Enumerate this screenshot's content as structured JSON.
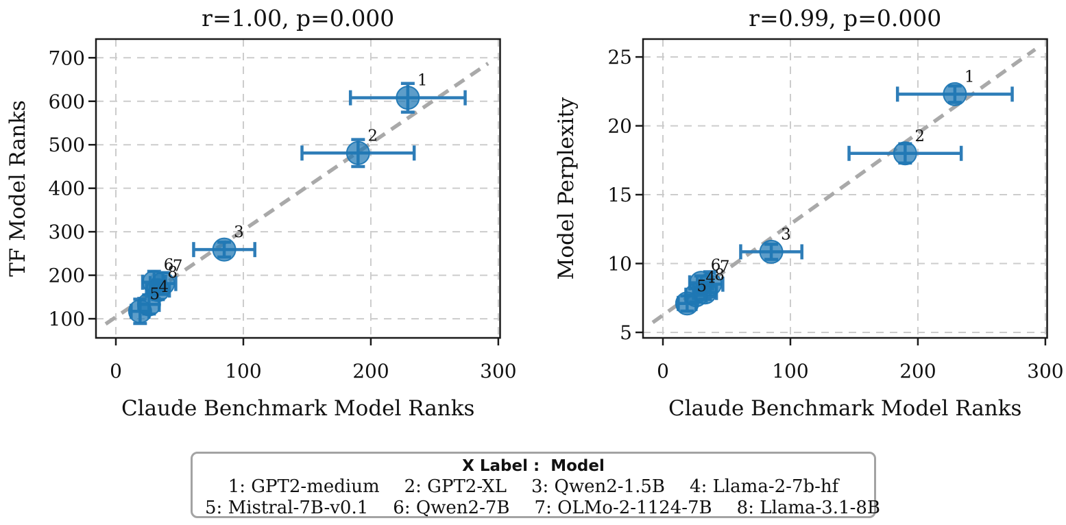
{
  "figure": {
    "background": "#ffffff",
    "marker_color": "#1f77b4",
    "errorbar_color": "#2e7db8",
    "trend_color": "#a9a9a9",
    "grid_color": "#cccccc",
    "spine_color": "#1a1a1a"
  },
  "chart_data": [
    {
      "type": "scatter",
      "title": "r=1.00, p=0.000",
      "xlabel": "Claude Benchmark Model Ranks",
      "ylabel": "TF Model Ranks",
      "xlim": [
        -15.6,
        301.4
      ],
      "ylim": [
        56,
        743
      ],
      "xticks": [
        0,
        100,
        200,
        300
      ],
      "yticks": [
        100,
        200,
        300,
        400,
        500,
        600,
        700
      ],
      "grid": true,
      "legend_position": "none",
      "trend_line": {
        "style": "dashed",
        "x": [
          -8,
          292
        ],
        "y": [
          88,
          687
        ]
      },
      "points": [
        {
          "label": "1",
          "x": 229,
          "y": 608,
          "xerr": 45,
          "yerr": 33
        },
        {
          "label": "2",
          "x": 190,
          "y": 481,
          "xerr": 44,
          "yerr": 31
        },
        {
          "label": "3",
          "x": 85,
          "y": 259,
          "xerr": 24,
          "yerr": 17
        },
        {
          "label": "4",
          "x": 26,
          "y": 133,
          "xerr": 8,
          "yerr": 22
        },
        {
          "label": "5",
          "x": 19,
          "y": 117,
          "xerr": 7,
          "yerr": 28
        },
        {
          "label": "6",
          "x": 30,
          "y": 184,
          "xerr": 9,
          "yerr": 25
        },
        {
          "label": "7",
          "x": 37,
          "y": 181,
          "xerr": 10,
          "yerr": 25
        },
        {
          "label": "8",
          "x": 33,
          "y": 166,
          "xerr": 9,
          "yerr": 22
        }
      ]
    },
    {
      "type": "scatter",
      "title": "r=0.99, p=0.000",
      "xlabel": "Claude Benchmark Model Ranks",
      "ylabel": "Model Perplexity",
      "xlim": [
        -15.6,
        301.4
      ],
      "ylim": [
        4.6,
        26.3
      ],
      "xticks": [
        0,
        100,
        200,
        300
      ],
      "yticks": [
        5,
        10,
        15,
        20,
        25
      ],
      "grid": true,
      "legend_position": "none",
      "trend_line": {
        "style": "dashed",
        "x": [
          -8,
          292
        ],
        "y": [
          5.72,
          25.55
        ]
      },
      "points": [
        {
          "label": "1",
          "x": 229,
          "y": 22.3,
          "xerr": 45,
          "yerr": 0.6
        },
        {
          "label": "2",
          "x": 190,
          "y": 18.0,
          "xerr": 44,
          "yerr": 0.7
        },
        {
          "label": "3",
          "x": 85,
          "y": 10.85,
          "xerr": 24,
          "yerr": 0.55
        },
        {
          "label": "4",
          "x": 26,
          "y": 7.7,
          "xerr": 8,
          "yerr": 0.5
        },
        {
          "label": "5",
          "x": 19,
          "y": 7.1,
          "xerr": 7,
          "yerr": 0.55
        },
        {
          "label": "6",
          "x": 30,
          "y": 8.6,
          "xerr": 9,
          "yerr": 0.5
        },
        {
          "label": "7",
          "x": 37,
          "y": 8.5,
          "xerr": 10,
          "yerr": 0.9
        },
        {
          "label": "8",
          "x": 33,
          "y": 7.9,
          "xerr": 9,
          "yerr": 0.5
        }
      ]
    }
  ],
  "legend": {
    "title": "X Label :  Model",
    "models": [
      {
        "num": "1",
        "name": "GPT2-medium"
      },
      {
        "num": "2",
        "name": "GPT2-XL"
      },
      {
        "num": "3",
        "name": "Qwen2-1.5B"
      },
      {
        "num": "4",
        "name": "Llama-2-7b-hf"
      },
      {
        "num": "5",
        "name": "Mistral-7B-v0.1"
      },
      {
        "num": "6",
        "name": "Qwen2-7B"
      },
      {
        "num": "7",
        "name": "OLMo-2-1124-7B"
      },
      {
        "num": "8",
        "name": "Llama-3.1-8B"
      }
    ]
  }
}
